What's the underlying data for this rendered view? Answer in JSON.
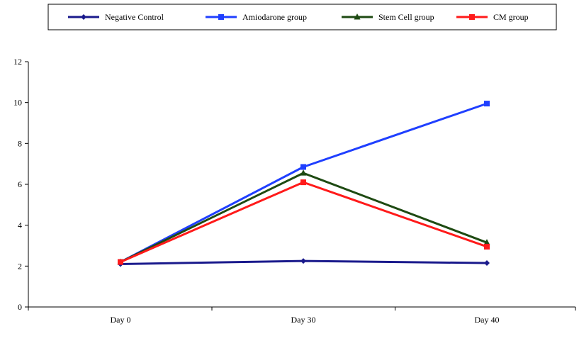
{
  "chart_data": {
    "type": "line",
    "title": "",
    "xlabel": "",
    "ylabel": "",
    "categories": [
      "Day 0",
      "Day 30",
      "Day 40"
    ],
    "ylim": [
      0,
      12
    ],
    "y_ticks": [
      0,
      2,
      4,
      6,
      8,
      10,
      12
    ],
    "grid": false,
    "legend_position": "top",
    "series": [
      {
        "name": "Negative Control",
        "values": [
          2.1,
          2.25,
          2.15
        ],
        "color": "#1a1a8c",
        "marker": "diamond"
      },
      {
        "name": "Amiodarone group",
        "values": [
          2.2,
          6.85,
          9.95
        ],
        "color": "#1f3fff",
        "marker": "square"
      },
      {
        "name": "Stem Cell group",
        "values": [
          2.2,
          6.55,
          3.15
        ],
        "color": "#1e4a12",
        "marker": "triangle"
      },
      {
        "name": "CM group",
        "values": [
          2.2,
          6.1,
          2.95
        ],
        "color": "#ff1a1a",
        "marker": "square"
      }
    ]
  }
}
